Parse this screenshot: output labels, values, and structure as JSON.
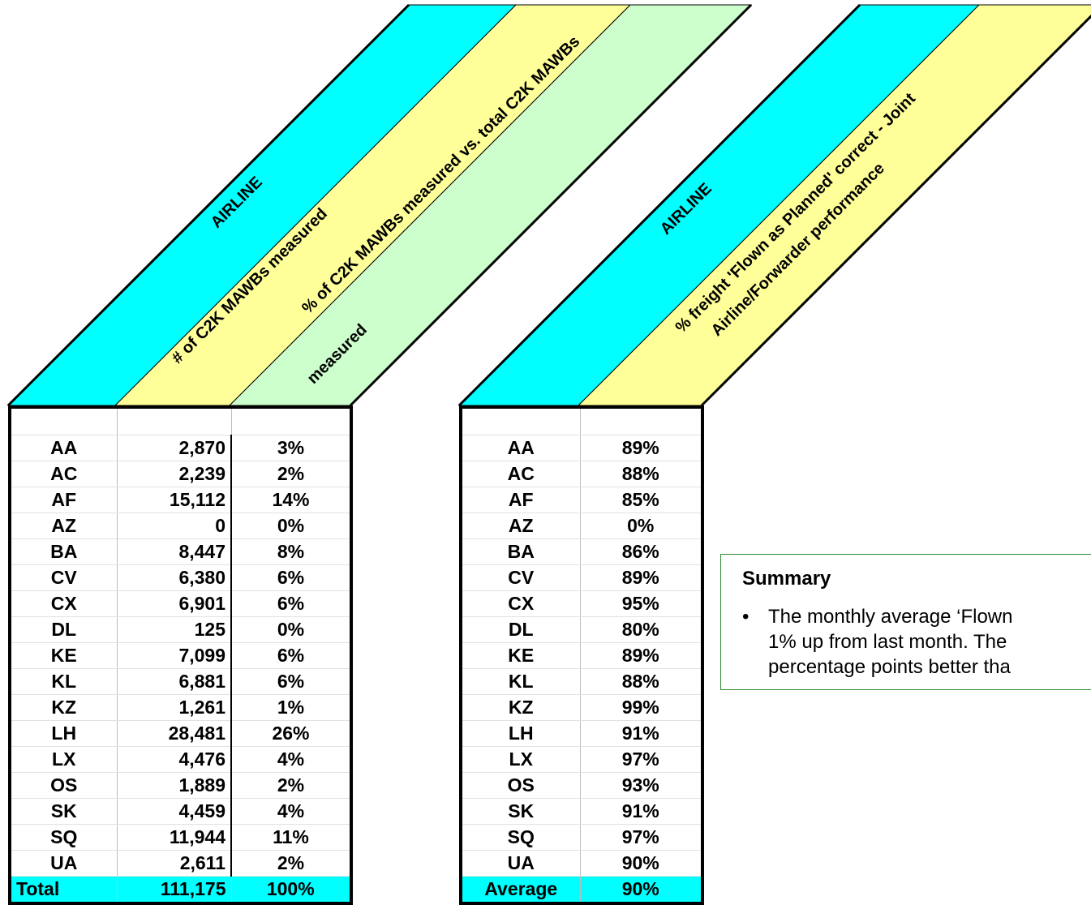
{
  "left_table": {
    "headers": {
      "airline": "AIRLINE",
      "count": "# of C2K MAWBs measured",
      "pct_line1": "% of  C2K MAWBs measured vs. total C2K MAWBs",
      "pct_line2": "measured"
    },
    "rows": [
      {
        "airline": "AA",
        "count": "2,870",
        "pct": "3%"
      },
      {
        "airline": "AC",
        "count": "2,239",
        "pct": "2%"
      },
      {
        "airline": "AF",
        "count": "15,112",
        "pct": "14%"
      },
      {
        "airline": "AZ",
        "count": "0",
        "pct": "0%"
      },
      {
        "airline": "BA",
        "count": "8,447",
        "pct": "8%"
      },
      {
        "airline": "CV",
        "count": "6,380",
        "pct": "6%"
      },
      {
        "airline": "CX",
        "count": "6,901",
        "pct": "6%"
      },
      {
        "airline": "DL",
        "count": "125",
        "pct": "0%"
      },
      {
        "airline": "KE",
        "count": "7,099",
        "pct": "6%"
      },
      {
        "airline": "KL",
        "count": "6,881",
        "pct": "6%"
      },
      {
        "airline": "KZ",
        "count": "1,261",
        "pct": "1%"
      },
      {
        "airline": "LH",
        "count": "28,481",
        "pct": "26%"
      },
      {
        "airline": "LX",
        "count": "4,476",
        "pct": "4%"
      },
      {
        "airline": "OS",
        "count": "1,889",
        "pct": "2%"
      },
      {
        "airline": "SK",
        "count": "4,459",
        "pct": "4%"
      },
      {
        "airline": "SQ",
        "count": "11,944",
        "pct": "11%"
      },
      {
        "airline": "UA",
        "count": "2,611",
        "pct": "2%"
      }
    ],
    "total": {
      "label": "Total",
      "count": "111,175",
      "pct": "100%"
    }
  },
  "right_table": {
    "headers": {
      "airline": "AIRLINE",
      "pct_line1": "% freight 'Flown as Planned' correct - Joint",
      "pct_line2": "Airline/Forwarder performance"
    },
    "rows": [
      {
        "airline": "AA",
        "pct": "89%"
      },
      {
        "airline": "AC",
        "pct": "88%"
      },
      {
        "airline": "AF",
        "pct": "85%"
      },
      {
        "airline": "AZ",
        "pct": "0%"
      },
      {
        "airline": "BA",
        "pct": "86%"
      },
      {
        "airline": "CV",
        "pct": "89%"
      },
      {
        "airline": "CX",
        "pct": "95%"
      },
      {
        "airline": "DL",
        "pct": "80%"
      },
      {
        "airline": "KE",
        "pct": "89%"
      },
      {
        "airline": "KL",
        "pct": "88%"
      },
      {
        "airline": "KZ",
        "pct": "99%"
      },
      {
        "airline": "LH",
        "pct": "91%"
      },
      {
        "airline": "LX",
        "pct": "97%"
      },
      {
        "airline": "OS",
        "pct": "93%"
      },
      {
        "airline": "SK",
        "pct": "91%"
      },
      {
        "airline": "SQ",
        "pct": "97%"
      },
      {
        "airline": "UA",
        "pct": "90%"
      }
    ],
    "average": {
      "label": "Average",
      "pct": "90%"
    }
  },
  "summary": {
    "title": "Summary",
    "bullet": "•",
    "text": "The monthly average ‘Flown\n1% up from last month. The\npercentage points better tha"
  },
  "colors": {
    "cyan": "#00ffff",
    "yellow": "#ffff99",
    "green": "#ccffcc",
    "summary_border": "#2e8b2e"
  }
}
